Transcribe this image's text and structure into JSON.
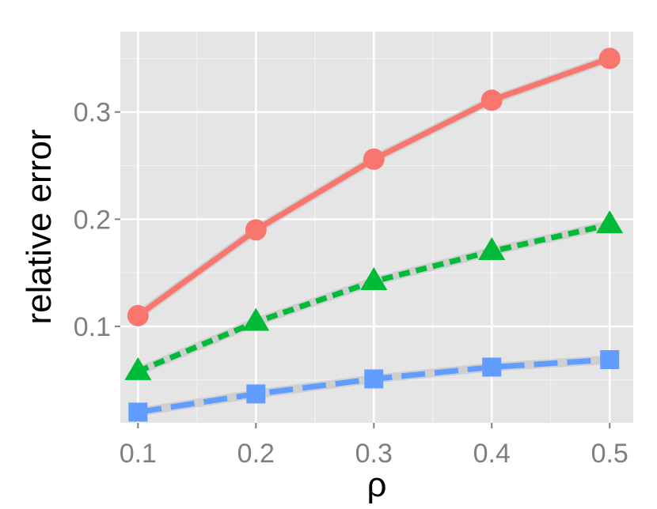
{
  "chart_data": {
    "type": "line",
    "xlabel": "ρ",
    "ylabel": "relative error",
    "x": [
      0.1,
      0.2,
      0.3,
      0.4,
      0.5
    ],
    "xlim": [
      0.085,
      0.52
    ],
    "ylim": [
      0.01,
      0.375
    ],
    "x_ticks": [
      0.1,
      0.2,
      0.3,
      0.4,
      0.5
    ],
    "x_tick_labels": [
      "0.1",
      "0.2",
      "0.3",
      "0.4",
      "0.5"
    ],
    "y_ticks": [
      0.1,
      0.2,
      0.3
    ],
    "y_tick_labels": [
      "0.1",
      "0.2",
      "0.3"
    ],
    "grid": true,
    "series": [
      {
        "values": [
          0.11,
          0.19,
          0.256,
          0.311,
          0.35
        ],
        "color": "#F8766D",
        "line": "solid",
        "marker": "circle"
      },
      {
        "values": [
          0.058,
          0.104,
          0.142,
          0.17,
          0.195
        ],
        "color": "#00BA38",
        "line": "dotted",
        "marker": "triangle"
      },
      {
        "values": [
          0.02,
          0.037,
          0.051,
          0.062,
          0.069
        ],
        "color": "#619CFF",
        "line": "dashed",
        "marker": "square"
      }
    ]
  }
}
